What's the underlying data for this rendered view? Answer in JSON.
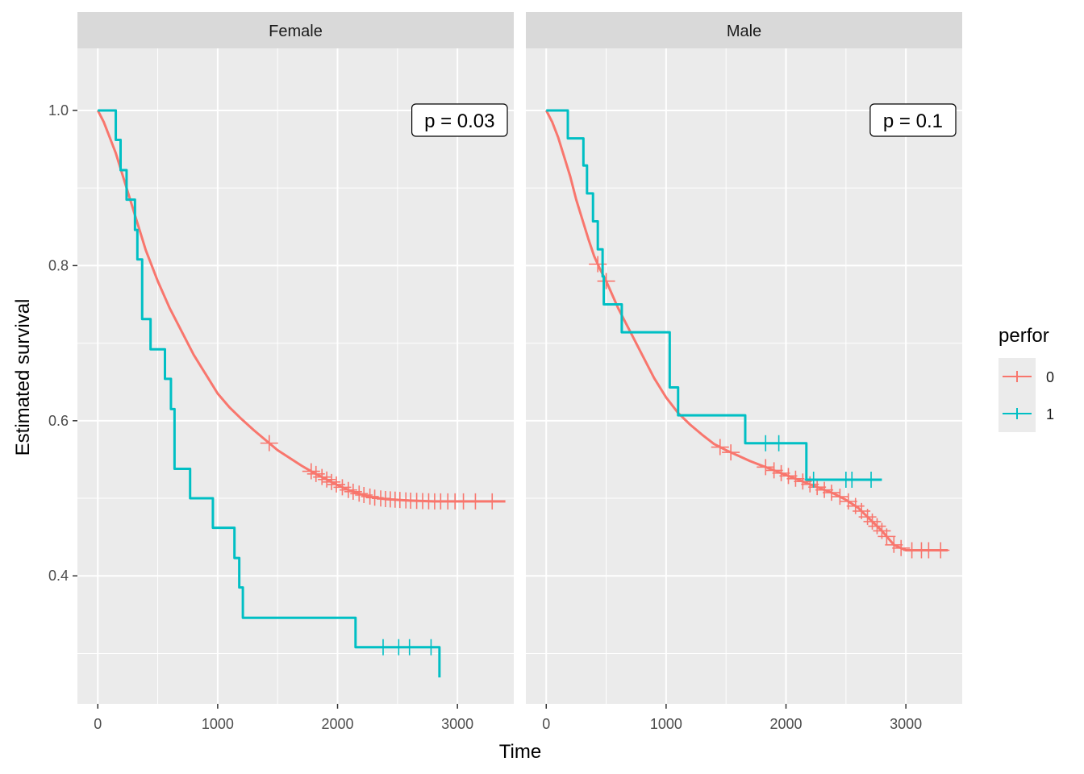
{
  "chart_data": {
    "type": "line",
    "subtype": "kaplan-meier step curves, faceted",
    "xlabel": "Time",
    "ylabel": "Estimated survival",
    "xlim": [
      -170,
      3470
    ],
    "ylim": [
      0.235,
      1.08
    ],
    "x_ticks": [
      0,
      1000,
      2000,
      3000
    ],
    "x_tick_labels": [
      "0",
      "1000",
      "2000",
      "3000"
    ],
    "y_ticks": [
      0.4,
      0.6,
      0.8,
      1.0
    ],
    "y_tick_labels": [
      "0.4",
      "0.6",
      "0.8",
      "1.0"
    ],
    "grid": true,
    "legend": {
      "title": "perfor",
      "position": "right",
      "entries": [
        {
          "label": "0",
          "color": "#F8766D"
        },
        {
          "label": "1",
          "color": "#00BFC4"
        }
      ]
    },
    "facets": [
      {
        "strip": "Female",
        "annotation": "p = 0.03",
        "series": [
          {
            "name": "0",
            "color": "#F8766D",
            "x": [
              0,
              50,
              100,
              150,
              200,
              250,
              300,
              350,
              400,
              500,
              600,
              700,
              800,
              900,
              1000,
              1100,
              1200,
              1300,
              1400,
              1500,
              1600,
              1700,
              1800,
              1900,
              2000,
              2100,
              2200,
              2300,
              2400,
              2600,
              2800,
              3000,
              3200,
              3400
            ],
            "y": [
              1.0,
              0.985,
              0.965,
              0.945,
              0.92,
              0.895,
              0.87,
              0.845,
              0.82,
              0.78,
              0.745,
              0.715,
              0.685,
              0.66,
              0.635,
              0.617,
              0.602,
              0.588,
              0.575,
              0.562,
              0.552,
              0.542,
              0.533,
              0.525,
              0.517,
              0.51,
              0.505,
              0.501,
              0.499,
              0.497,
              0.496,
              0.496,
              0.496,
              0.496
            ],
            "censored_x": [
              1430,
              1780,
              1820,
              1870,
              1910,
              1950,
              1990,
              2040,
              2090,
              2130,
              2180,
              2220,
              2270,
              2310,
              2360,
              2400,
              2440,
              2480,
              2520,
              2570,
              2610,
              2660,
              2710,
              2760,
              2810,
              2860,
              2920,
              2980,
              3050,
              3150,
              3290
            ]
          },
          {
            "name": "1",
            "color": "#00BFC4",
            "x": [
              0,
              150,
              190,
              240,
              310,
              330,
              370,
              440,
              560,
              610,
              640,
              770,
              960,
              1140,
              1180,
              1210,
              2150,
              2850
            ],
            "y": [
              1.0,
              0.962,
              0.923,
              0.885,
              0.846,
              0.808,
              0.731,
              0.692,
              0.654,
              0.615,
              0.538,
              0.5,
              0.462,
              0.423,
              0.385,
              0.346,
              0.308,
              0.269
            ],
            "censored_x": [
              2380,
              2510,
              2600,
              2780
            ]
          }
        ]
      },
      {
        "strip": "Male",
        "annotation": "p = 0.1",
        "series": [
          {
            "name": "0",
            "color": "#F8766D",
            "x": [
              0,
              50,
              100,
              150,
              200,
              250,
              300,
              350,
              400,
              450,
              500,
              600,
              700,
              800,
              900,
              1000,
              1100,
              1200,
              1300,
              1400,
              1500,
              1600,
              1700,
              1800,
              1900,
              2000,
              2100,
              2200,
              2300,
              2400,
              2500,
              2600,
              2700,
              2800,
              2900,
              3000,
              3100,
              3200,
              3350
            ],
            "y": [
              1.0,
              0.985,
              0.965,
              0.94,
              0.915,
              0.885,
              0.86,
              0.835,
              0.812,
              0.795,
              0.78,
              0.745,
              0.715,
              0.685,
              0.655,
              0.63,
              0.61,
              0.595,
              0.582,
              0.57,
              0.562,
              0.555,
              0.548,
              0.542,
              0.536,
              0.53,
              0.524,
              0.518,
              0.512,
              0.506,
              0.498,
              0.488,
              0.473,
              0.458,
              0.44,
              0.433,
              0.433,
              0.433,
              0.433
            ],
            "censored_x": [
              430,
              500,
              1450,
              1540,
              1830,
              1900,
              1960,
              2020,
              2080,
              2140,
              2200,
              2260,
              2320,
              2380,
              2450,
              2520,
              2580,
              2630,
              2680,
              2720,
              2760,
              2800,
              2840,
              2900,
              2960,
              3050,
              3130,
              3190,
              3290
            ]
          },
          {
            "name": "1",
            "color": "#00BFC4",
            "x": [
              0,
              180,
              310,
              340,
              390,
              430,
              470,
              480,
              630,
              1030,
              1100,
              1660,
              2170,
              2230,
              2800
            ],
            "y": [
              1.0,
              0.964,
              0.929,
              0.893,
              0.857,
              0.821,
              0.786,
              0.75,
              0.714,
              0.643,
              0.607,
              0.571,
              0.524,
              0.524,
              0.524
            ],
            "censored_x": [
              1830,
              1940,
              2230,
              2500,
              2550,
              2710
            ]
          }
        ]
      }
    ]
  }
}
